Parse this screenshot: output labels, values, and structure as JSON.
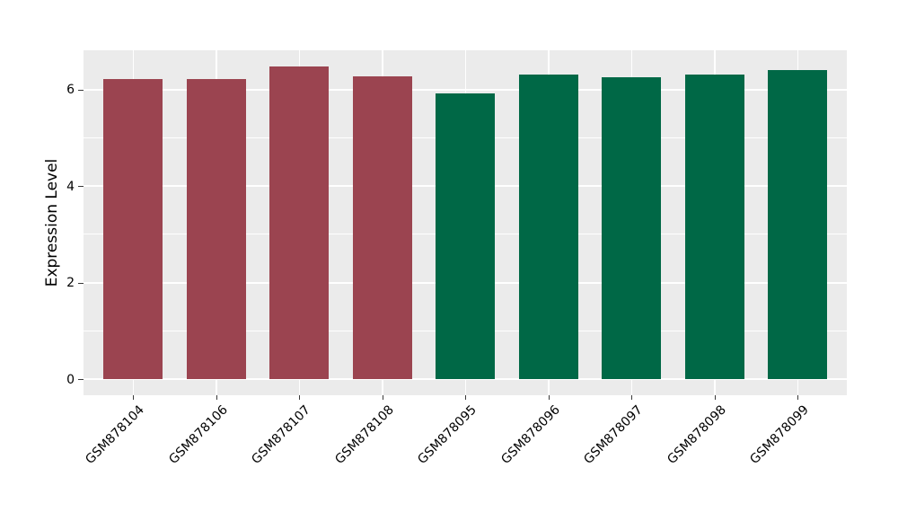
{
  "figure": {
    "background": "#ffffff"
  },
  "chart_data": {
    "type": "bar",
    "title": "",
    "xlabel": "",
    "ylabel": "Expression Level",
    "categories": [
      "GSM878104",
      "GSM878106",
      "GSM878107",
      "GSM878108",
      "GSM878095",
      "GSM878096",
      "GSM878097",
      "GSM878098",
      "GSM878099"
    ],
    "values": [
      6.21,
      6.21,
      6.48,
      6.27,
      5.92,
      6.31,
      6.25,
      6.31,
      6.4
    ],
    "bar_colors": [
      "#9b4450",
      "#9b4450",
      "#9b4450",
      "#9b4450",
      "#006846",
      "#006846",
      "#006846",
      "#006846",
      "#006846"
    ],
    "color_groups": [
      {
        "color": "#9b4450",
        "categories": [
          "GSM878104",
          "GSM878106",
          "GSM878107",
          "GSM878108"
        ]
      },
      {
        "color": "#006846",
        "categories": [
          "GSM878095",
          "GSM878096",
          "GSM878097",
          "GSM878098",
          "GSM878099"
        ]
      }
    ],
    "ylim": [
      -0.33,
      6.81
    ],
    "yticks": [
      0,
      2,
      4,
      6
    ],
    "ytick_labels": [
      "0",
      "2",
      "4",
      "6"
    ],
    "yticks_minor": [
      1,
      3,
      5
    ],
    "grid": true,
    "legend": false,
    "panel_background": "#ebebeb",
    "gridline_color": "#ffffff",
    "tick_color": "#3a3a3a",
    "text_color": "#000000"
  }
}
